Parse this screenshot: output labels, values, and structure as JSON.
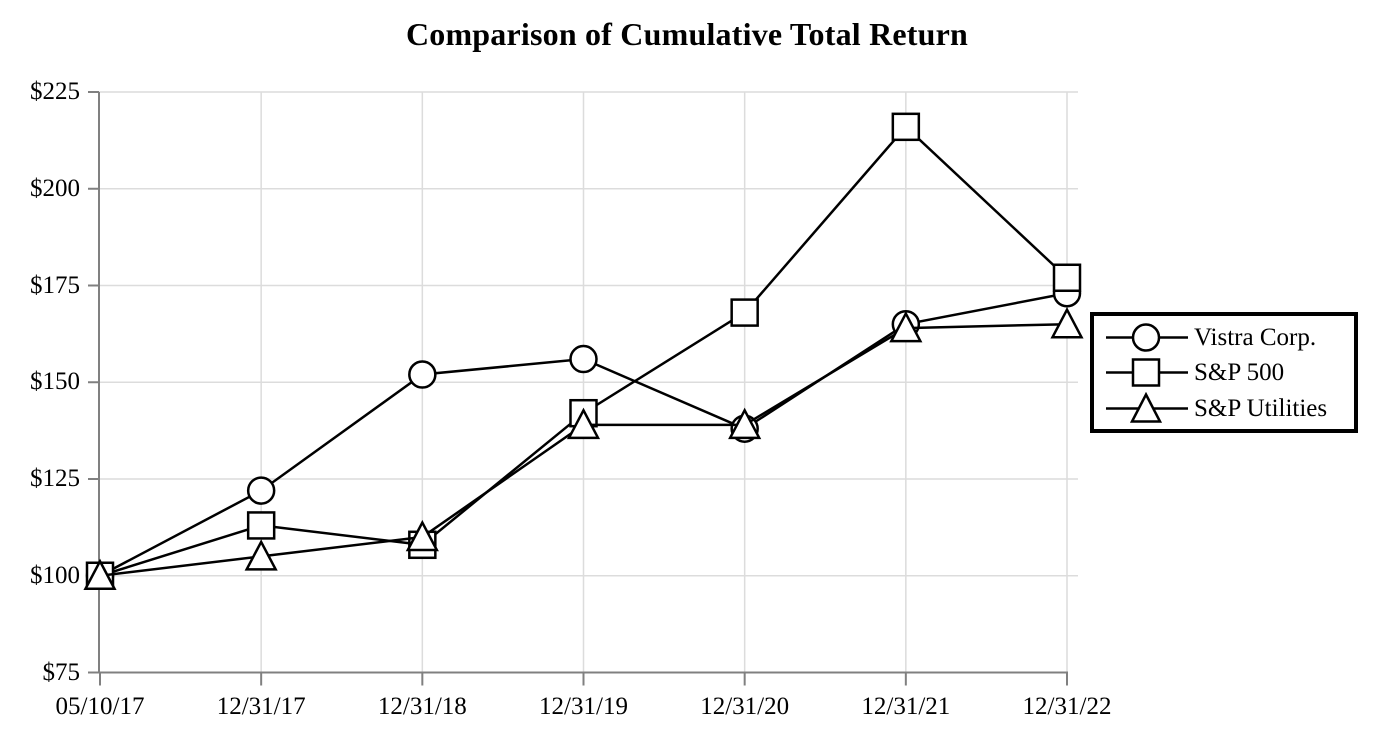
{
  "title": "Comparison of Cumulative Total Return",
  "chart_data": {
    "type": "line",
    "title": "Comparison of Cumulative Total Return",
    "x_labels": [
      "05/10/17",
      "12/31/17",
      "12/31/18",
      "12/31/19",
      "12/31/20",
      "12/31/21",
      "12/31/22"
    ],
    "series": [
      {
        "name": "Vistra Corp.",
        "marker": "circle",
        "values": [
          100,
          122,
          152,
          156,
          138,
          165,
          173
        ]
      },
      {
        "name": "S&P 500",
        "marker": "square",
        "values": [
          100,
          113,
          108,
          142,
          168,
          216,
          177
        ]
      },
      {
        "name": "S&P Utilities",
        "marker": "triangle",
        "values": [
          100,
          105,
          110,
          139,
          139,
          164,
          165
        ]
      }
    ],
    "ylim": [
      75,
      225
    ],
    "ytick_step": 25,
    "ytick_labels": [
      "$75",
      "$100",
      "$125",
      "$150",
      "$175",
      "$200",
      "$225"
    ],
    "currency_prefix": "$",
    "grid": true,
    "legend_position": "middle-right",
    "colors": {
      "line": "#000000",
      "marker_fill": "#ffffff",
      "axis": "#808080",
      "grid": "#dcdcdc",
      "text": "#000000",
      "background": "#ffffff"
    }
  }
}
